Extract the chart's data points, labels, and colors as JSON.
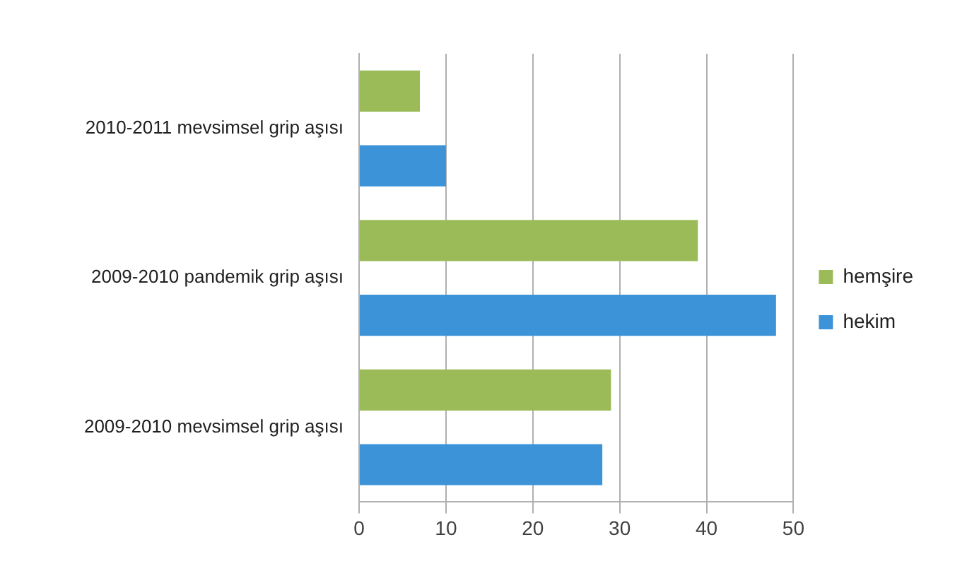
{
  "chart_data": {
    "type": "bar",
    "orientation": "horizontal",
    "categories": [
      "2010-2011 mevsimsel grip aşısı",
      "2009-2010 pandemik grip aşısı",
      "2009-2010 mevsimsel grip aşısı"
    ],
    "series": [
      {
        "name": "hemşire",
        "color": "#9bbb59",
        "values": [
          7,
          39,
          29
        ]
      },
      {
        "name": "hekim",
        "color": "#3c93d8",
        "values": [
          10,
          48,
          28
        ]
      }
    ],
    "xlim": [
      0,
      50
    ],
    "xticks": [
      0,
      10,
      20,
      30,
      40,
      50
    ],
    "grid": "x",
    "legend": "right"
  }
}
